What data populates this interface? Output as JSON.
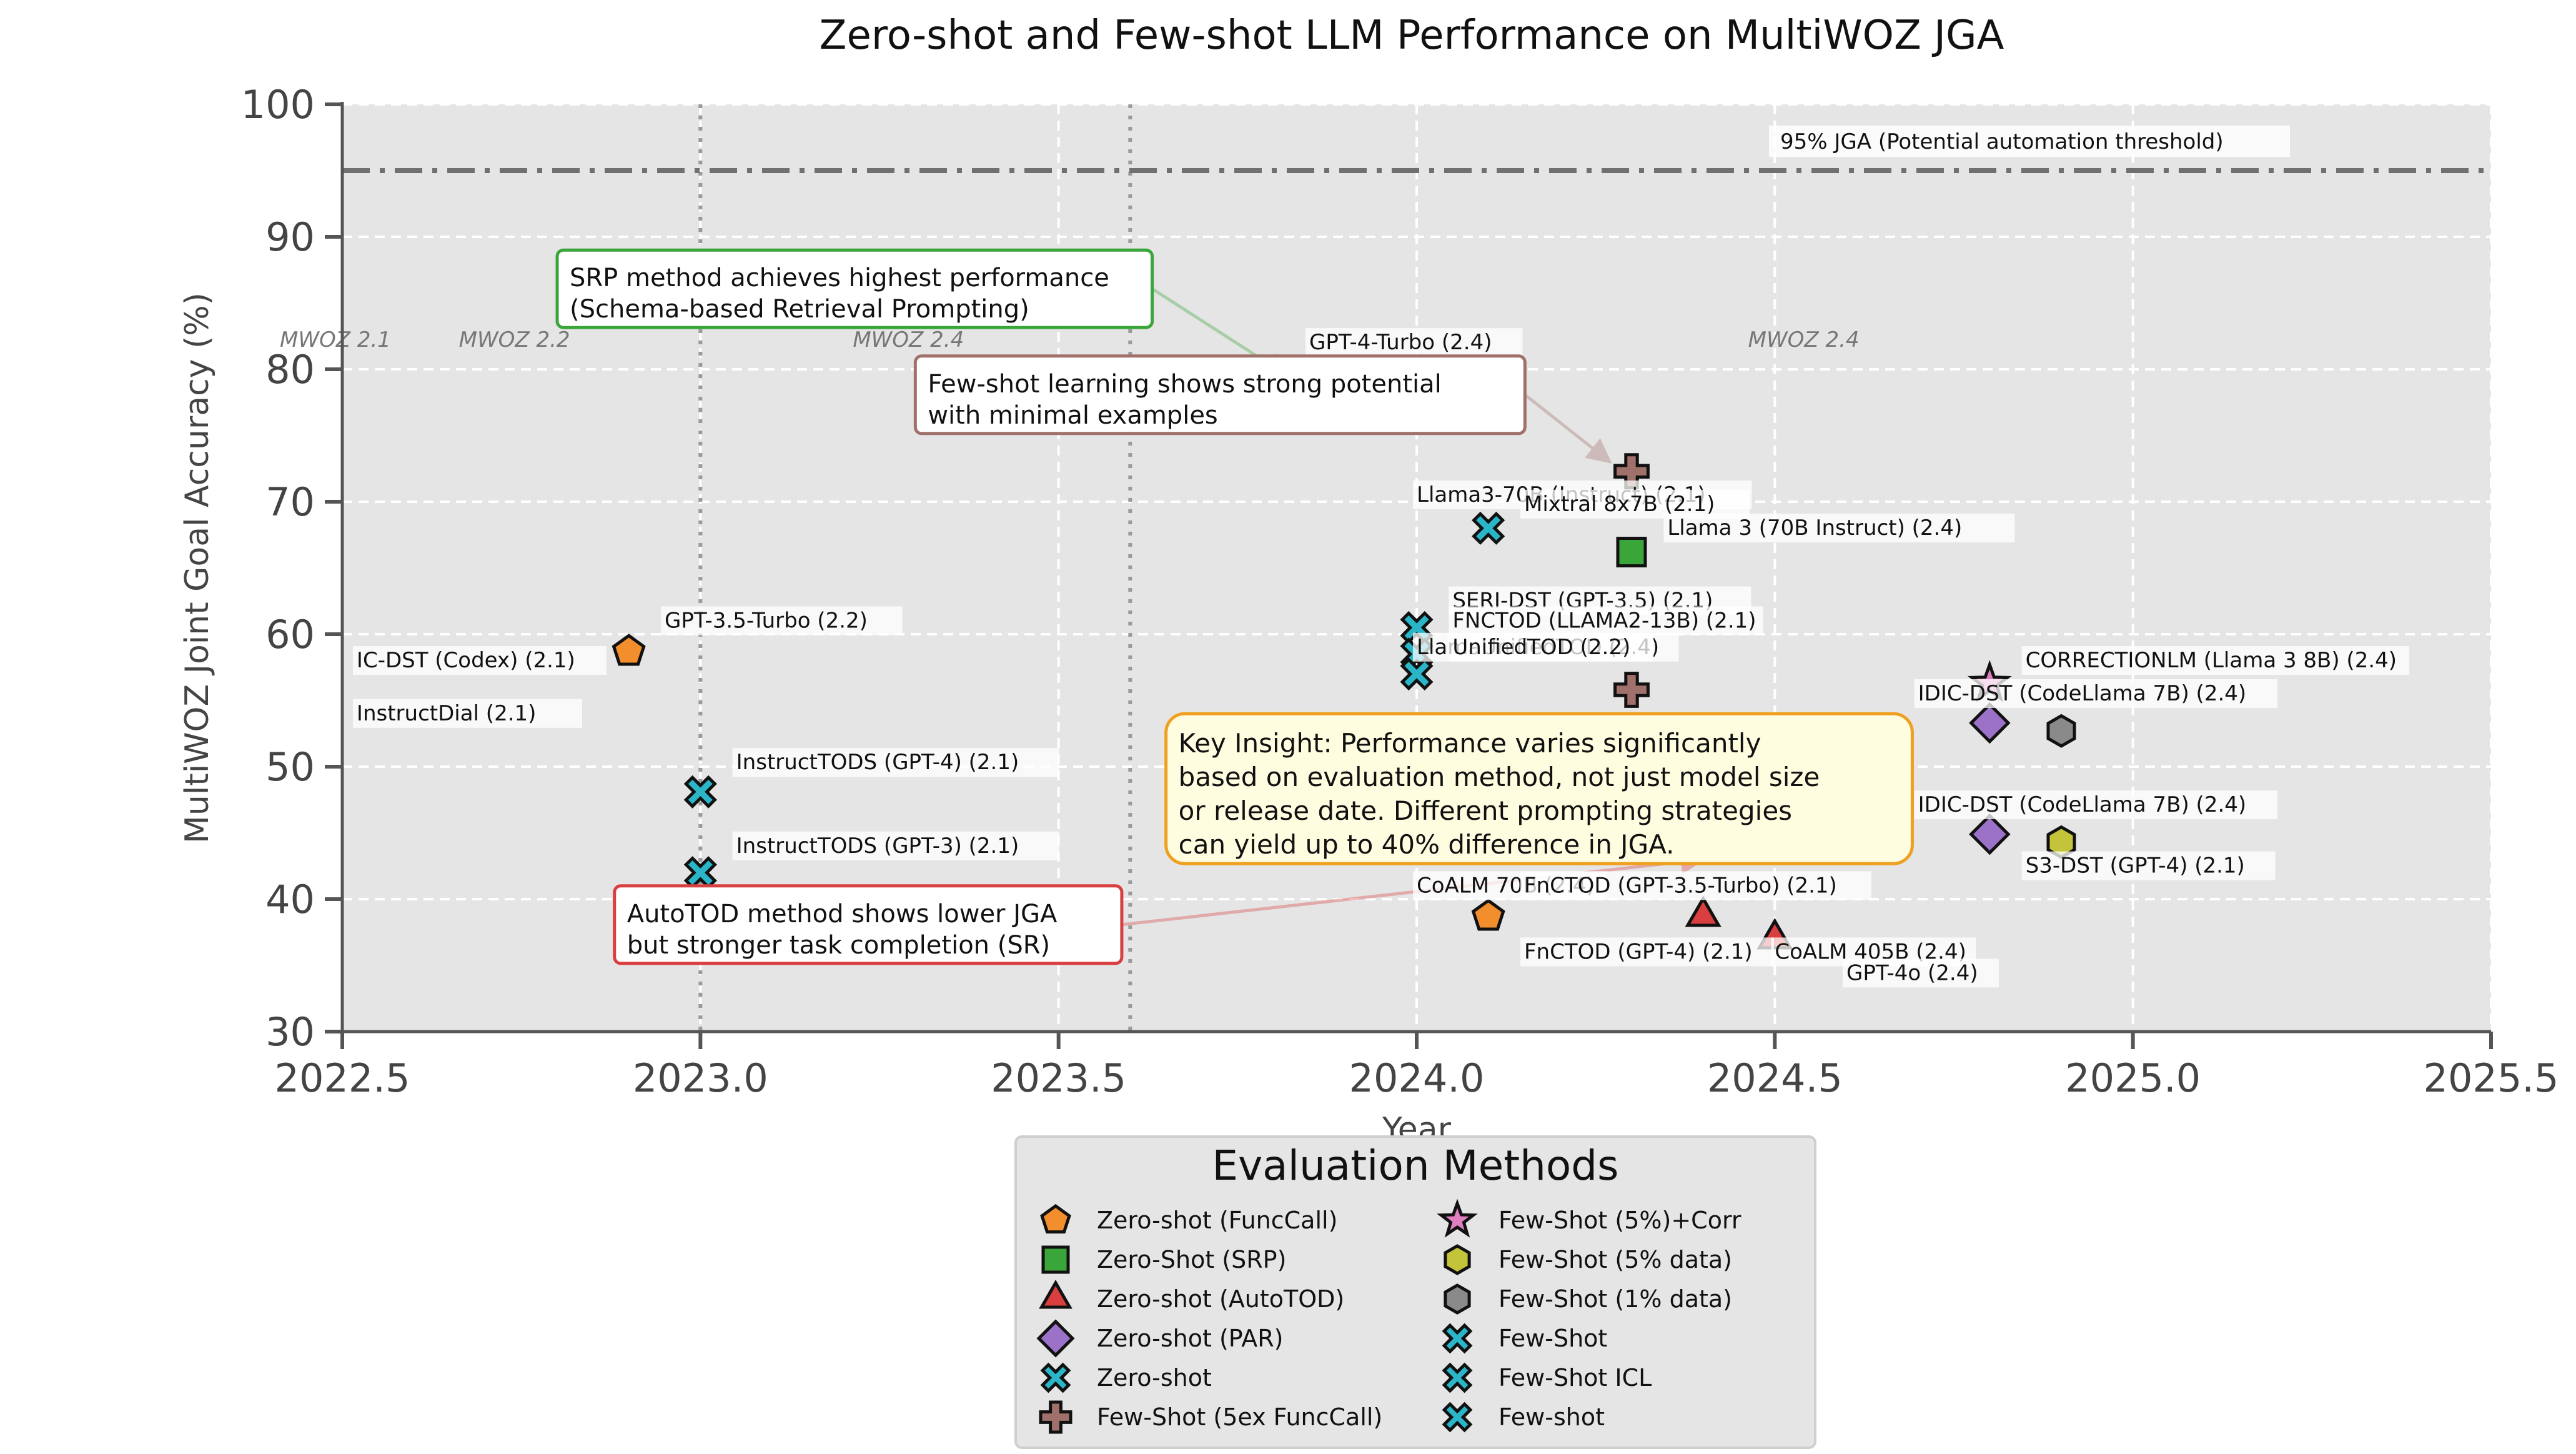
{
  "chart_data": {
    "type": "scatter",
    "title": "Zero-shot and Few-shot LLM Performance on MultiWOZ JGA",
    "xlabel": "Year",
    "ylabel": "MultiWOZ Joint Goal Accuracy (%)",
    "xlim": [
      2022.5,
      2025.5
    ],
    "ylim": [
      30,
      100
    ],
    "xticks": [
      "2022.5",
      "2023.0",
      "2023.5",
      "2024.0",
      "2024.5",
      "2025.0",
      "2025.5"
    ],
    "yticks": [
      "30",
      "40",
      "50",
      "60",
      "70",
      "80",
      "90",
      "100"
    ],
    "grid": true,
    "threshold": {
      "y": 95,
      "label": "95% JGA (Potential automation threshold)"
    },
    "version_lines": [
      2023.0,
      2023.6
    ],
    "version_labels": [
      {
        "x": 2022.5,
        "text": "MWOZ 2.1"
      },
      {
        "x": 2022.75,
        "text": "MWOZ 2.2"
      },
      {
        "x": 2023.3,
        "text": "MWOZ 2.4"
      },
      {
        "x": 2024.55,
        "text": "MWOZ 2.4"
      }
    ],
    "legend": {
      "title": "Evaluation Methods",
      "placement": "bottom-center",
      "entries": [
        {
          "label": "Zero-shot (FuncCall)",
          "marker": "pentagon",
          "color": "#f28e2b"
        },
        {
          "label": "Zero-Shot (SRP)",
          "marker": "square",
          "color": "#3aa63a"
        },
        {
          "label": "Zero-shot (AutoTOD)",
          "marker": "triangle",
          "color": "#d93f3f"
        },
        {
          "label": "Zero-shot (PAR)",
          "marker": "diamond",
          "color": "#9b72c8"
        },
        {
          "label": "Zero-shot",
          "marker": "x",
          "color": "#2ab5c8"
        },
        {
          "label": "Few-Shot (5ex FuncCall)",
          "marker": "plus",
          "color": "#a0706a"
        },
        {
          "label": "Few-Shot (5%)+Corr",
          "marker": "star",
          "color": "#e07fc0"
        },
        {
          "label": "Few-Shot (5% data)",
          "marker": "hexagon",
          "color": "#c4c43a"
        },
        {
          "label": "Few-Shot (1% data)",
          "marker": "hexagon",
          "color": "#8a8a8a"
        },
        {
          "label": "Few-Shot",
          "marker": "x",
          "color": "#2ab5c8"
        },
        {
          "label": "Few-Shot ICL",
          "marker": "x",
          "color": "#2ab5c8"
        },
        {
          "label": "Few-shot",
          "marker": "x",
          "color": "#2ab5c8"
        }
      ]
    },
    "points": [
      {
        "label": "IC-DST (Codex) (2.1)",
        "x": 2022.6,
        "y": 58.5,
        "marker": "x",
        "color": "#2ab5c8",
        "method": "Few-Shot ICL",
        "hidden": true,
        "lx": 2022.52,
        "ly": 57.5,
        "anchor": "start"
      },
      {
        "label": "InstructDial (2.1)",
        "x": 2022.6,
        "y": 53.5,
        "marker": "x",
        "color": "#2ab5c8",
        "method": "Few-shot",
        "hidden": true,
        "lx": 2022.52,
        "ly": 53.5,
        "anchor": "start"
      },
      {
        "label": "GPT-3.5-Turbo (2.2)",
        "x": 2022.9,
        "y": 58.7,
        "marker": "pentagon",
        "color": "#f28e2b",
        "lx": 2022.95,
        "ly": 60.5,
        "anchor": "start"
      },
      {
        "label": "InstructTODS (GPT-4) (2.1)",
        "x": 2023.0,
        "y": 48.1,
        "marker": "x",
        "color": "#2ab5c8",
        "lx": 2023.05,
        "ly": 49.8,
        "anchor": "start"
      },
      {
        "label": "InstructTODS (GPT-3) (2.1)",
        "x": 2023.0,
        "y": 42.0,
        "marker": "x",
        "color": "#2ab5c8",
        "lx": 2023.05,
        "ly": 43.5,
        "anchor": "start"
      },
      {
        "label": "GPT-4-Turbo (2.4)",
        "x": 2023.82,
        "y": 79.5,
        "marker": "square",
        "color": "#3aa63a",
        "faded": true,
        "lx": 2023.85,
        "ly": 81.5,
        "anchor": "start"
      },
      {
        "label": "Llama3-70B (Instruct) (2.1)",
        "x": 2024.1,
        "y": 68.0,
        "marker": "x",
        "color": "#2ab5c8",
        "lx": 2024.0,
        "ly": 70.0,
        "anchor": "start"
      },
      {
        "label": "Mixtral 8x7B (2.1)",
        "x": 2024.3,
        "y": 72.3,
        "marker": "plus",
        "color": "#a0706a",
        "lx": 2024.15,
        "ly": 69.3,
        "anchor": "start"
      },
      {
        "label": "Llama 3 (70B Instruct) (2.4)",
        "x": 2024.3,
        "y": 66.2,
        "marker": "square",
        "color": "#3aa63a",
        "lx": 2024.35,
        "ly": 67.5,
        "anchor": "start"
      },
      {
        "label": "SERI-DST (GPT-3.5) (2.1)",
        "x": 2024.0,
        "y": 60.5,
        "marker": "x",
        "color": "#2ab5c8",
        "lx": 2024.05,
        "ly": 62.0,
        "anchor": "start"
      },
      {
        "label": "FNCTOD (LLAMA2-13B) (2.1)",
        "x": 2024.0,
        "y": 58.5,
        "marker": "x",
        "color": "#2ab5c8",
        "lx": 2024.05,
        "ly": 60.5,
        "anchor": "start"
      },
      {
        "label": "LlamaUnifiedTOD (2.4)",
        "x": 2024.0,
        "y": 57.0,
        "marker": "x",
        "color": "#2ab5c8",
        "lx": 2024.0,
        "ly": 58.5,
        "anchor": "start"
      },
      {
        "label": "UnifiedTOD (2.2)",
        "x": 2024.3,
        "y": 55.8,
        "marker": "plus",
        "color": "#a0706a",
        "lx": 2024.05,
        "ly": 58.5,
        "anchor": "start"
      },
      {
        "label": "CoALM 70B (2.4)",
        "x": 2024.1,
        "y": 38.7,
        "marker": "pentagon",
        "color": "#f28e2b",
        "lx": 2024.0,
        "ly": 40.5,
        "anchor": "start"
      },
      {
        "label": "FnCTOD (GPT-3.5-Turbo) (2.1)",
        "x": 2024.4,
        "y": 43.9,
        "marker": "triangle",
        "color": "#d93f3f",
        "lx": 2024.15,
        "ly": 40.5,
        "anchor": "start"
      },
      {
        "label": "FnCTOD (GPT-4) (2.1)",
        "x": 2024.4,
        "y": 38.7,
        "marker": "triangle",
        "color": "#d93f3f",
        "lx": 2024.15,
        "ly": 35.5,
        "anchor": "start"
      },
      {
        "label": "CoALM 405B (2.4)",
        "x": 2024.5,
        "y": 37.0,
        "marker": "triangle",
        "color": "#d93f3f",
        "lx": 2024.5,
        "ly": 35.5,
        "anchor": "start"
      },
      {
        "label": "GPT-4o (2.4)",
        "x": 2024.5,
        "y": 37.0,
        "marker": "triangle",
        "color": "#d93f3f",
        "hidden": true,
        "lx": 2024.6,
        "ly": 33.9,
        "anchor": "start"
      },
      {
        "label": "CORRECTIONLM (Llama 3 8B) (2.4)",
        "x": 2024.8,
        "y": 56.3,
        "marker": "star",
        "color": "#e07fc0",
        "lx": 2024.85,
        "ly": 57.5,
        "anchor": "start"
      },
      {
        "label": "IDIC-DST (CodeLlama 7B) (2.4)",
        "x": 2024.8,
        "y": 53.3,
        "marker": "diamond",
        "color": "#9b72c8",
        "lx": 2024.7,
        "ly": 55.0,
        "anchor": "start"
      },
      {
        "label": "S3-DST (GPT-4) (2.1)",
        "x": 2024.9,
        "y": 52.7,
        "marker": "hexagon",
        "color": "#8a8a8a",
        "lx": 2024.9,
        "ly": 54.7,
        "anchor": "start",
        "labelHidden": true
      },
      {
        "label": "IDIC-DST (CodeLlama 7B) (2.4)",
        "x": 2024.8,
        "y": 44.9,
        "marker": "diamond",
        "color": "#9b72c8",
        "lx": 2024.7,
        "ly": 46.6,
        "anchor": "start"
      },
      {
        "label": "S3-DST (GPT-4) (2.1)",
        "x": 2024.9,
        "y": 44.3,
        "marker": "hexagon",
        "color": "#c4c43a",
        "lx": 2024.85,
        "ly": 42.0,
        "anchor": "start"
      }
    ],
    "annotations": [
      {
        "text": [
          "SRP method achieves highest performance",
          "(Schema-based Retrieval Prompting)"
        ],
        "x": 2022.8,
        "y": 89.0,
        "border": "#3aa63a",
        "fill": "#ffffff",
        "arrow_to": [
          2023.82,
          79.5
        ]
      },
      {
        "text": [
          "Few-shot learning shows strong potential",
          "with minimal examples"
        ],
        "x": 2023.3,
        "y": 81.0,
        "border": "#a0706a",
        "fill": "#ffffff",
        "arrow_to": [
          2024.27,
          73.0
        ]
      },
      {
        "text": [
          "Key Insight: Performance varies significantly",
          "based on evaluation method, not just model size",
          "or release date. Different prompting strategies",
          "can yield up to 40% difference in JGA."
        ],
        "x": 2023.65,
        "y": 54.0,
        "border": "#f0a020",
        "fill": "#fffde0",
        "rounded": true
      },
      {
        "text": [
          "AutoTOD method shows lower JGA",
          "but stronger task completion (SR)"
        ],
        "x": 2022.88,
        "y": 41.0,
        "border": "#d93f3f",
        "fill": "#ffffff",
        "arrow_to": [
          2024.4,
          43.0
        ]
      }
    ]
  }
}
